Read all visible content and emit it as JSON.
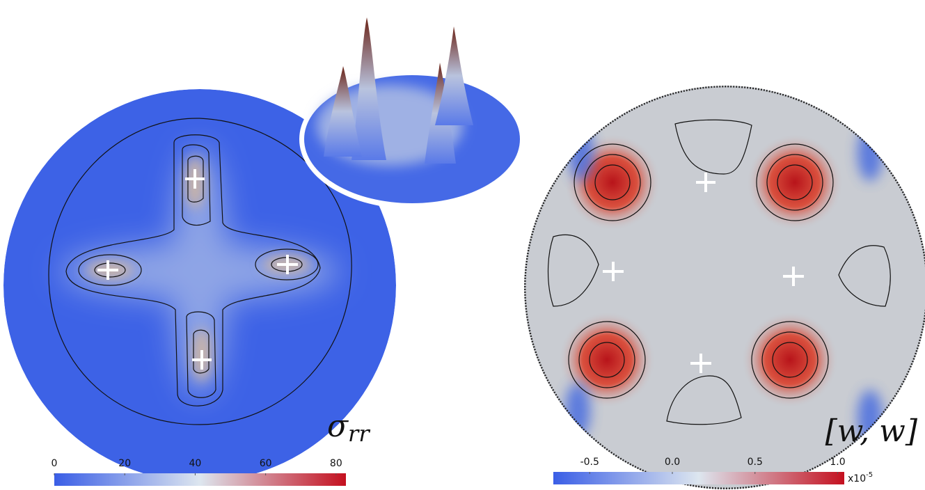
{
  "chart_data": [
    {
      "type": "contour",
      "label": {
        "symbol": "σ",
        "subscript": "rr"
      },
      "colorbar": {
        "clim": [
          0,
          82.8
        ],
        "ticks": [
          0,
          20,
          40,
          60,
          80
        ],
        "colors": [
          "#3a5ee6",
          "#dde6ef",
          "#c4101f"
        ]
      }
    },
    {
      "type": "contour",
      "label": {
        "symbol": "[w, w]"
      },
      "colorbar": {
        "clim": [
          -0.72,
          1.04
        ],
        "ticks": [
          -0.5,
          {
            "value": 0,
            "label": "0.0"
          },
          0.5,
          {
            "value": 1,
            "label": "1.0"
          }
        ],
        "colors": [
          "#3a5ee6",
          "#dde6ef",
          "#c4101f"
        ],
        "scale_base": "x10",
        "scale_exponent": "-5"
      }
    }
  ]
}
